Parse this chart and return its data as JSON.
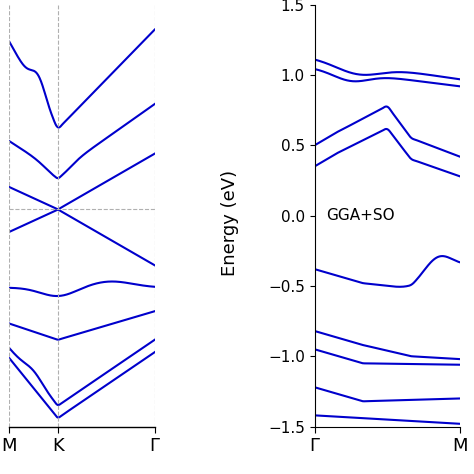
{
  "line_color": "#0000CC",
  "line_width": 1.5,
  "ylabel": "Energy (eV)",
  "left_xtick_labels": [
    "M",
    "K",
    "Γ"
  ],
  "right_xtick_labels": [
    "Γ",
    "M"
  ],
  "right_yticks": [
    -1.5,
    -1.0,
    -0.5,
    0.0,
    0.5,
    1.0,
    1.5
  ],
  "annotation": "GGA+SO",
  "background_color": "#ffffff",
  "grid_color": "#b0b0b0",
  "n_points": 300
}
